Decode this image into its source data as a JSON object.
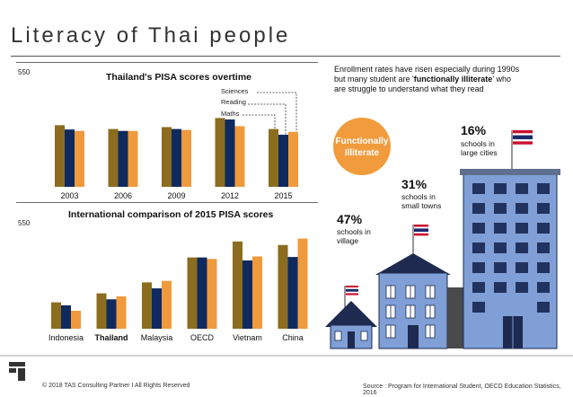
{
  "title": "Literacy of Thai people",
  "chart_data": [
    {
      "type": "bar",
      "title": "Thailand's PISA scores overtime",
      "categories": [
        "2003",
        "2006",
        "2009",
        "2012",
        "2015"
      ],
      "series": [
        {
          "name": "Sciences",
          "values": [
            429,
            421,
            425,
            444,
            421
          ]
        },
        {
          "name": "Reading",
          "values": [
            420,
            417,
            421,
            441,
            409
          ]
        },
        {
          "name": "Maths",
          "values": [
            417,
            417,
            419,
            427,
            415
          ]
        }
      ],
      "ylim": [
        300,
        550
      ],
      "y_tick_label": "550",
      "colors": [
        "#8c6d1f",
        "#0f2a5f",
        "#f09a3e"
      ]
    },
    {
      "type": "bar",
      "title": "International comparison of 2015 PISA scores",
      "categories": [
        "Indonesia",
        "Thailand",
        "Malaysia",
        "OECD",
        "Vietnam",
        "China"
      ],
      "series": [
        {
          "name": "Sciences",
          "values": [
            403,
            421,
            443,
            493,
            525,
            518
          ]
        },
        {
          "name": "Reading",
          "values": [
            397,
            409,
            431,
            493,
            487,
            494
          ]
        },
        {
          "name": "Maths",
          "values": [
            386,
            415,
            446,
            490,
            495,
            531
          ]
        }
      ],
      "ylim": [
        350,
        550
      ],
      "y_tick_label": "550",
      "colors": [
        "#8c6d1f",
        "#0f2a5f",
        "#f09a3e"
      ]
    }
  ],
  "infographic": {
    "enrollment_note_line1": "Enrollment rates have risen especially during 1990s",
    "enrollment_note_line2a": "but many student are '",
    "enrollment_note_line2b": "functionally illiterate",
    "enrollment_note_line2c": "' who",
    "enrollment_note_line3": "are struggle to understand what they read",
    "bubble_line1": "Functionally",
    "bubble_line2": "Illiterate",
    "village_pct": "47%",
    "village_l1": "schools in",
    "village_l2": "village",
    "towns_pct": "31%",
    "towns_l1": "schools in",
    "towns_l2": "small towns",
    "cities_pct": "16%",
    "cities_l1": "schools in",
    "cities_l2": "large cities",
    "bubble_color": "#f29b3c",
    "building_color": "#7f9fd6",
    "window_color": "#22325e"
  },
  "footer": {
    "copyright": "© 2018 TAS Consulting Partner  I  All Rights Reserved",
    "source": "Source : Program for International Student, OECD Education Statistics, 2016"
  }
}
